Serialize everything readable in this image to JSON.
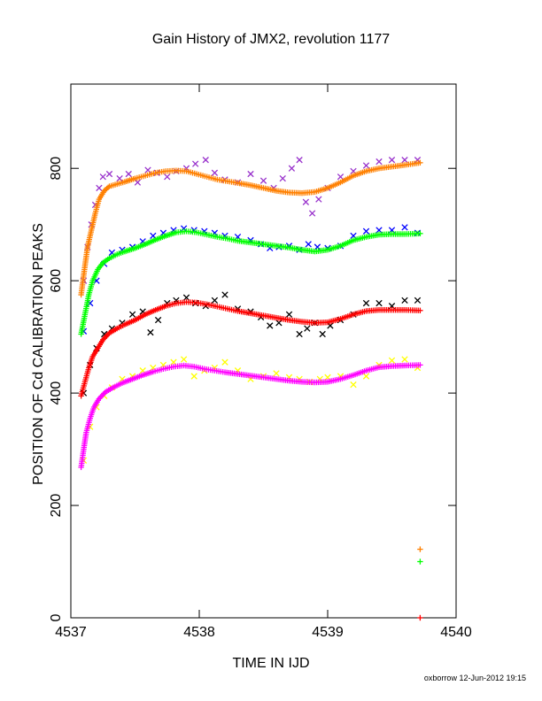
{
  "chart_data": {
    "type": "scatter",
    "title": "Gain History of JMX2, revolution 1177",
    "xlabel": "TIME IN IJD",
    "ylabel": "POSITION OF Cd CALIBRATION PEAKS",
    "xlim": [
      4537,
      4540
    ],
    "ylim": [
      0,
      950
    ],
    "xticks": [
      4537,
      4538,
      4539,
      4540
    ],
    "yticks": [
      0,
      200,
      400,
      600,
      800
    ],
    "grid": false,
    "legend": "none",
    "footer": "oxborrow 12-Jun-2012 19:15",
    "series": [
      {
        "color": "#9933cc",
        "marker": "x",
        "x": [
          4537.1,
          4537.13,
          4537.16,
          4537.19,
          4537.22,
          4537.25,
          4537.3,
          4537.38,
          4537.45,
          4537.52,
          4537.6,
          4537.67,
          4537.75,
          4537.82,
          4537.9,
          4537.97,
          4538.05,
          4538.12,
          4538.2,
          4538.3,
          4538.4,
          4538.5,
          4538.58,
          4538.65,
          4538.72,
          4538.78,
          4538.83,
          4538.88,
          4538.93,
          4539.0,
          4539.1,
          4539.2,
          4539.3,
          4539.4,
          4539.5,
          4539.6,
          4539.7
        ],
        "y": [
          600,
          660,
          700,
          735,
          765,
          785,
          790,
          782,
          790,
          775,
          797,
          792,
          785,
          795,
          800,
          808,
          815,
          792,
          780,
          775,
          790,
          778,
          765,
          782,
          800,
          815,
          740,
          720,
          745,
          765,
          785,
          795,
          805,
          812,
          815,
          815,
          815
        ]
      },
      {
        "color": "#0000ff",
        "marker": "x",
        "x": [
          4537.1,
          4537.15,
          4537.2,
          4537.26,
          4537.32,
          4537.4,
          4537.48,
          4537.56,
          4537.64,
          4537.72,
          4537.8,
          4537.88,
          4537.96,
          4538.04,
          4538.12,
          4538.2,
          4538.3,
          4538.4,
          4538.48,
          4538.55,
          4538.62,
          4538.7,
          4538.78,
          4538.85,
          4538.92,
          4539.0,
          4539.1,
          4539.2,
          4539.3,
          4539.4,
          4539.5,
          4539.6,
          4539.7
        ],
        "y": [
          510,
          560,
          600,
          630,
          650,
          655,
          660,
          670,
          680,
          685,
          690,
          693,
          690,
          688,
          685,
          680,
          678,
          672,
          665,
          658,
          660,
          662,
          655,
          665,
          660,
          658,
          662,
          680,
          688,
          690,
          690,
          695,
          685
        ]
      },
      {
        "color": "#000000",
        "marker": "x",
        "x": [
          4537.1,
          4537.15,
          4537.2,
          4537.26,
          4537.32,
          4537.4,
          4537.48,
          4537.56,
          4537.62,
          4537.68,
          4537.75,
          4537.82,
          4537.9,
          4537.97,
          4538.05,
          4538.12,
          4538.2,
          4538.3,
          4538.4,
          4538.48,
          4538.55,
          4538.62,
          4538.7,
          4538.78,
          4538.84,
          4538.9,
          4538.96,
          4539.02,
          4539.1,
          4539.2,
          4539.3,
          4539.4,
          4539.5,
          4539.6,
          4539.7
        ],
        "y": [
          400,
          450,
          480,
          505,
          515,
          525,
          540,
          545,
          508,
          530,
          560,
          565,
          570,
          560,
          555,
          565,
          575,
          550,
          545,
          535,
          520,
          525,
          540,
          505,
          515,
          525,
          505,
          520,
          530,
          540,
          560,
          560,
          555,
          565,
          565
        ]
      },
      {
        "color": "#ffff00",
        "marker": "x",
        "x": [
          4537.1,
          4537.15,
          4537.2,
          4537.26,
          4537.32,
          4537.4,
          4537.48,
          4537.56,
          4537.64,
          4537.72,
          4537.8,
          4537.88,
          4537.96,
          4538.04,
          4538.12,
          4538.2,
          4538.3,
          4538.4,
          4538.5,
          4538.6,
          4538.7,
          4538.78,
          4538.86,
          4538.94,
          4539.0,
          4539.1,
          4539.2,
          4539.3,
          4539.4,
          4539.5,
          4539.6,
          4539.7
        ],
        "y": [
          280,
          340,
          375,
          395,
          410,
          425,
          430,
          440,
          445,
          450,
          455,
          460,
          430,
          440,
          445,
          455,
          440,
          425,
          430,
          435,
          428,
          425,
          420,
          425,
          428,
          430,
          415,
          430,
          450,
          458,
          460,
          445
        ]
      },
      {
        "color": "#ff8000",
        "marker": "+",
        "x": [
          4537.08,
          4537.1,
          4537.13,
          4537.16,
          4537.19,
          4537.22,
          4537.26,
          4537.3,
          4537.36,
          4537.42,
          4537.5,
          4537.58,
          4537.66,
          4537.74,
          4537.82,
          4537.9,
          4537.98,
          4538.06,
          4538.14,
          4538.22,
          4538.3,
          4538.4,
          4538.5,
          4538.6,
          4538.7,
          4538.8,
          4538.9,
          4539.0,
          4539.1,
          4539.2,
          4539.3,
          4539.4,
          4539.5,
          4539.6,
          4539.72
        ],
        "y": [
          575,
          610,
          660,
          690,
          720,
          745,
          760,
          768,
          772,
          776,
          782,
          787,
          792,
          795,
          796,
          795,
          790,
          785,
          780,
          777,
          774,
          770,
          765,
          760,
          757,
          756,
          758,
          765,
          775,
          787,
          795,
          800,
          803,
          806,
          810
        ]
      },
      {
        "color": "#00ff00",
        "marker": "+",
        "x": [
          4537.08,
          4537.11,
          4537.14,
          4537.17,
          4537.21,
          4537.25,
          4537.3,
          4537.36,
          4537.42,
          4537.5,
          4537.58,
          4537.66,
          4537.74,
          4537.82,
          4537.9,
          4537.98,
          4538.06,
          4538.14,
          4538.22,
          4538.3,
          4538.4,
          4538.5,
          4538.6,
          4538.7,
          4538.8,
          4538.9,
          4539.0,
          4539.1,
          4539.2,
          4539.3,
          4539.4,
          4539.5,
          4539.6,
          4539.72
        ],
        "y": [
          505,
          540,
          575,
          600,
          620,
          632,
          640,
          647,
          652,
          658,
          665,
          673,
          680,
          686,
          688,
          686,
          682,
          678,
          675,
          671,
          668,
          665,
          662,
          659,
          655,
          652,
          655,
          662,
          672,
          678,
          682,
          683,
          683,
          684
        ]
      },
      {
        "color": "#ff0000",
        "marker": "+",
        "x": [
          4537.08,
          4537.11,
          4537.14,
          4537.17,
          4537.21,
          4537.25,
          4537.3,
          4537.36,
          4537.42,
          4537.5,
          4537.58,
          4537.66,
          4537.74,
          4537.82,
          4537.9,
          4537.98,
          4538.06,
          4538.14,
          4538.22,
          4538.3,
          4538.4,
          4538.5,
          4538.6,
          4538.7,
          4538.8,
          4538.9,
          4539.0,
          4539.1,
          4539.2,
          4539.3,
          4539.4,
          4539.5,
          4539.6,
          4539.72
        ],
        "y": [
          395,
          420,
          445,
          465,
          480,
          495,
          507,
          515,
          522,
          530,
          540,
          548,
          555,
          560,
          562,
          561,
          558,
          554,
          550,
          546,
          542,
          538,
          534,
          530,
          527,
          525,
          526,
          532,
          540,
          546,
          548,
          548,
          548,
          547
        ]
      },
      {
        "color": "#ff00ff",
        "marker": "+",
        "x": [
          4537.08,
          4537.1,
          4537.12,
          4537.15,
          4537.18,
          4537.22,
          4537.27,
          4537.33,
          4537.4,
          4537.48,
          4537.56,
          4537.64,
          4537.72,
          4537.8,
          4537.88,
          4537.96,
          4538.04,
          4538.12,
          4538.2,
          4538.3,
          4538.4,
          4538.5,
          4538.6,
          4538.7,
          4538.8,
          4538.9,
          4539.0,
          4539.1,
          4539.2,
          4539.3,
          4539.4,
          4539.5,
          4539.6,
          4539.72
        ],
        "y": [
          268,
          300,
          330,
          355,
          375,
          390,
          402,
          410,
          418,
          425,
          432,
          438,
          443,
          447,
          449,
          447,
          443,
          440,
          437,
          434,
          431,
          428,
          425,
          422,
          420,
          419,
          420,
          425,
          432,
          440,
          446,
          448,
          449,
          450
        ]
      }
    ],
    "extra_marks": [
      {
        "color": "#ff8000",
        "marker": "+",
        "x": 4539.72,
        "y": 122
      },
      {
        "color": "#00ff00",
        "marker": "+",
        "x": 4539.72,
        "y": 100
      },
      {
        "color": "#ff0000",
        "marker": "+",
        "x": 4539.72,
        "y": 0
      }
    ]
  }
}
